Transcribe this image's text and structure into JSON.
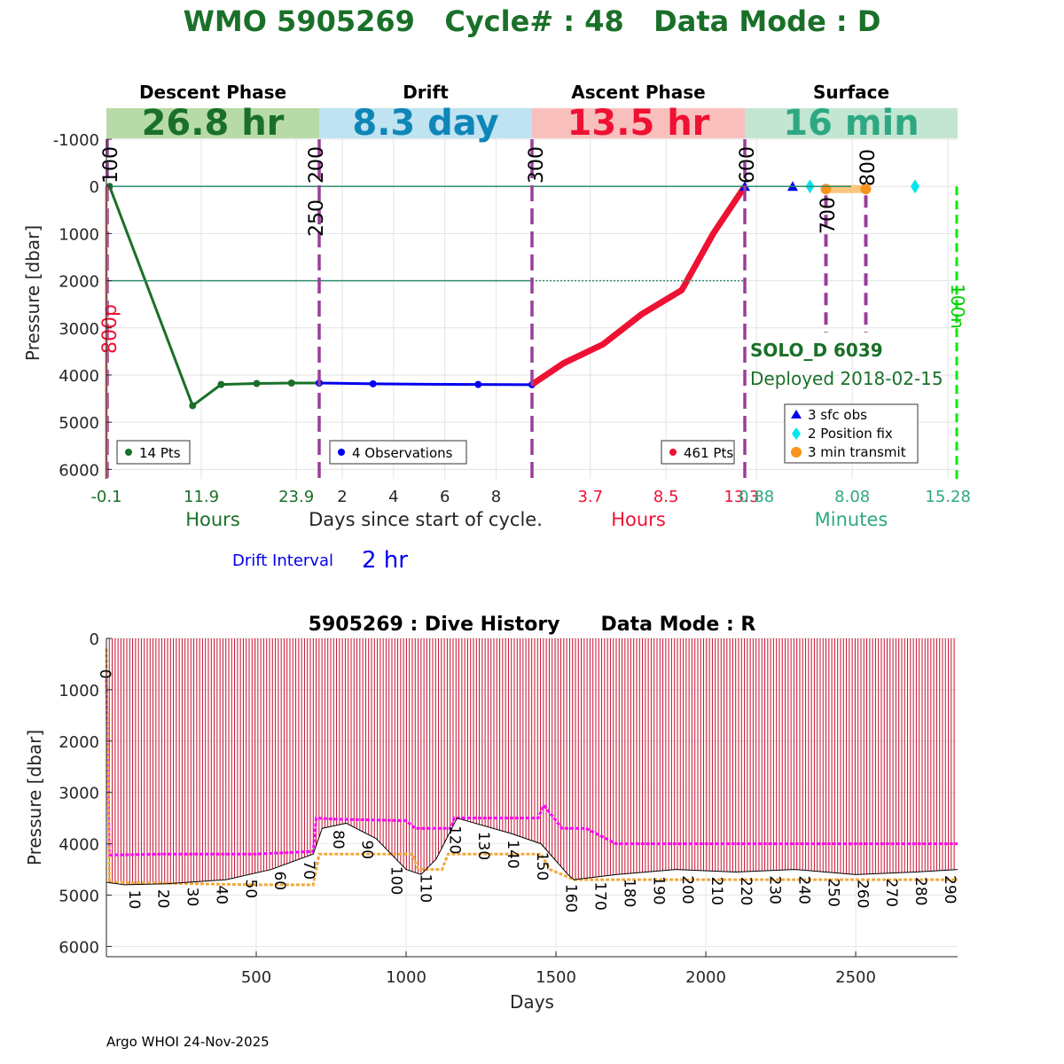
{
  "header": {
    "title": "WMO 5905269   Cycle# : 48   Data Mode : D",
    "title_color": "#1a7028"
  },
  "chart_data": [
    {
      "type": "line",
      "name": "cycle-profile",
      "ylabel": "Pressure [dbar]",
      "ylim": [
        6200,
        -1000
      ],
      "yticks": [
        -1000,
        0,
        1000,
        2000,
        3000,
        4000,
        5000,
        6000
      ],
      "reference_lines": [
        0,
        2000
      ],
      "phases": [
        {
          "key": "descent",
          "label": "Descent Phase",
          "duration": "26.8 hr",
          "band_color": "#b7dba8",
          "duration_color": "#1a7028",
          "xticks": [
            "-0.1",
            "11.9",
            "23.9"
          ],
          "xtick_color": "#1a7028",
          "xlabel": "Hours",
          "xlabel_color": "#1a7028",
          "xlim": [
            -0.1,
            26.8
          ],
          "line_color": "#1a7028",
          "legend": "14 Pts",
          "x": [
            -0.1,
            0.3,
            10.8,
            14.4,
            18.9,
            23.3,
            26.8
          ],
          "y": [
            0,
            0,
            4650,
            4200,
            4180,
            4170,
            4170
          ]
        },
        {
          "key": "drift",
          "label": "Drift",
          "duration": "8.3 day",
          "band_color": "#bfe3f0",
          "duration_color": "#0f86b8",
          "xticks": [
            "2",
            "4",
            "6",
            "8"
          ],
          "xtick_color": "#262626",
          "xlabel": "Days since start of cycle.",
          "xlabel_color": "#262626",
          "xlim": [
            1.1,
            9.4
          ],
          "line_color": "#0000ee",
          "legend": "4 Observations",
          "x": [
            1.1,
            3.2,
            5.3,
            7.3,
            9.4
          ],
          "y": [
            4170,
            4185,
            4195,
            4200,
            4205
          ],
          "obs_x": [
            1.1,
            3.2,
            7.3,
            9.4
          ]
        },
        {
          "key": "ascent",
          "label": "Ascent Phase",
          "duration": "13.5 hr",
          "band_color": "#f8bfbd",
          "duration_color": "#ee1133",
          "xticks": [
            "3.7",
            "8.5",
            "13.3"
          ],
          "xtick_color": "#ee1133",
          "xlabel": "Hours",
          "xlabel_color": "#ee1133",
          "xlim": [
            0,
            13.5
          ],
          "line_color": "#ee1133",
          "legend": "461 Pts",
          "x": [
            0,
            2,
            4.5,
            7,
            9.5,
            11.5,
            13.5
          ],
          "y": [
            4200,
            3750,
            3350,
            2700,
            2200,
            1000,
            0
          ]
        },
        {
          "key": "surface",
          "label": "Surface",
          "duration": "16 min",
          "band_color": "#c2e6d1",
          "duration_color": "#2ea883",
          "xticks": [
            "0.88",
            "8.08",
            "15.28"
          ],
          "xtick_color": "#2ea883",
          "xlabel": "Minutes",
          "xlabel_color": "#2ea883",
          "xlim": [
            0,
            16
          ],
          "sfc_obs_x": [
            0,
            3.6
          ],
          "position_fix_x": [
            4.9,
            12.8
          ],
          "transmit_x": [
            6.1,
            9.1
          ],
          "legend": [
            "3 sfc obs",
            "2 Position fix",
            "3 min transmit"
          ]
        }
      ],
      "boundary_labels": [
        "100",
        "200",
        "250",
        "300",
        "600",
        "700",
        "800"
      ],
      "side_labels": {
        "left": "800p",
        "right": "100n"
      },
      "float_info": {
        "name": "SOLO_D 6039",
        "deployed": "Deployed 2018-02-15",
        "color": "#1a7028"
      },
      "drift_interval": {
        "label": "Drift Interval",
        "value": "2 hr",
        "color": "#0000ee"
      }
    },
    {
      "type": "line",
      "name": "dive-history",
      "title": "5905269 : Dive History      Data Mode : R",
      "xlabel": "Days",
      "ylabel": "Pressure [dbar]",
      "xlim": [
        0,
        2840
      ],
      "ylim": [
        6200,
        0
      ],
      "xticks": [
        500,
        1000,
        1500,
        2000,
        2500
      ],
      "yticks": [
        0,
        1000,
        2000,
        3000,
        4000,
        5000,
        6000
      ],
      "cycle_interval_days": 9.72,
      "cycle_count": 292,
      "cycle_labels": [
        "0",
        "10",
        "20",
        "30",
        "40",
        "50",
        "60",
        "70",
        "80",
        "90",
        "100",
        "110",
        "120",
        "130",
        "140",
        "150",
        "160",
        "170",
        "180",
        "190",
        "200",
        "210",
        "220",
        "230",
        "240",
        "250",
        "260",
        "270",
        "280",
        "290"
      ],
      "cycle_line_color": "#c8102e",
      "series": [
        {
          "key": "park_pressure",
          "color": "#ff00ff",
          "x": [
            0,
            10,
            200,
            500,
            690,
            700,
            760,
            1000,
            1030,
            1150,
            1160,
            1440,
            1460,
            1520,
            1600,
            1700,
            2000,
            2500,
            2840
          ],
          "y": [
            800,
            4220,
            4200,
            4200,
            4150,
            3500,
            3520,
            3550,
            3700,
            3700,
            3500,
            3500,
            3250,
            3700,
            3700,
            4000,
            4000,
            4000,
            4000
          ]
        },
        {
          "key": "profile_depth",
          "color": "#f2a93b",
          "x": [
            0,
            10,
            300,
            500,
            690,
            710,
            1020,
            1040,
            1120,
            1140,
            1160,
            1450,
            1480,
            1560,
            1600,
            2000,
            2840
          ],
          "y": [
            200,
            4750,
            4780,
            4800,
            4800,
            4200,
            4200,
            4500,
            4500,
            4200,
            4200,
            4200,
            4500,
            4700,
            4700,
            4700,
            4700
          ]
        },
        {
          "key": "max_depth",
          "color": "#000000",
          "x": [
            0,
            60,
            200,
            400,
            550,
            690,
            720,
            800,
            900,
            1000,
            1050,
            1100,
            1170,
            1350,
            1450,
            1540,
            1560,
            1700,
            1900,
            2100,
            2300,
            2500,
            2700,
            2840
          ],
          "y": [
            4750,
            4800,
            4780,
            4700,
            4500,
            4200,
            3700,
            3600,
            3900,
            4500,
            4600,
            4300,
            3500,
            3800,
            4000,
            4600,
            4700,
            4600,
            4500,
            4550,
            4500,
            4600,
            4550,
            4500
          ]
        }
      ]
    }
  ],
  "footer": {
    "text": "Argo WHOI 24-Nov-2025"
  }
}
